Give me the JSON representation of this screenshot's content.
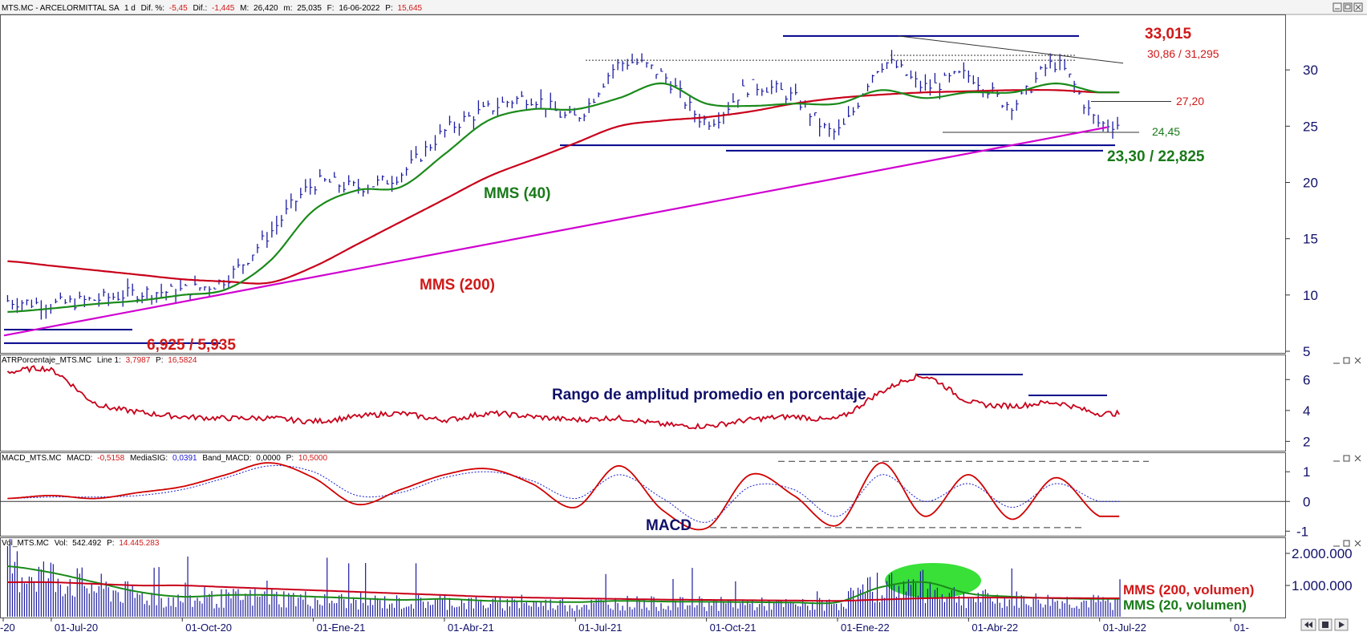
{
  "header": {
    "symbol": "MTS.MC",
    "name": "ARCELORMITTAL SA",
    "period": "1 d",
    "dif_pct_label": "Dif. %:",
    "dif_pct": "-5,45",
    "dif_label": "Dif.:",
    "dif": "-1,445",
    "max_label": "M:",
    "max": "26,420",
    "min_label": "m:",
    "min": "25,035",
    "date_label": "F:",
    "date": "16-06-2022",
    "price_label": "P:",
    "price": "15,645"
  },
  "atr_header": {
    "name": "ATRPorcentaje_MTS.MC",
    "line_label": "Line 1:",
    "line": "3,7987",
    "price_label": "P:",
    "price": "16,5824"
  },
  "macd_header": {
    "name": "MACD_MTS.MC",
    "macd_label": "MACD:",
    "macd": "-0,5158",
    "sig_label": "MediaSIG:",
    "sig": "0,0391",
    "band_label": "Band_MACD:",
    "band": "0,0000",
    "price_label": "P:",
    "price": "10,5000"
  },
  "vol_header": {
    "name": "Vol_MTS.MC",
    "vol_label": "Vol:",
    "vol": "542.492",
    "price_label": "P:",
    "price": "14.445.283"
  },
  "colors": {
    "price_bars": "#1a1aa0",
    "mms40": "#1a8a1a",
    "mms200": "#c8001a",
    "trendline": "#d000d0",
    "level_line": "#00008b",
    "atr_line": "#c8001a",
    "macd_line": "#d00000",
    "signal_line": "#1a1ad0",
    "highlight": "#22dd22",
    "red_text": "#d01818",
    "green_text": "#1a7a1a",
    "navy_text": "#10106a"
  },
  "icons": [
    "window-minimize-icon",
    "window-restore-icon",
    "window-close-icon",
    "scroll-left-icon",
    "save-icon",
    "scroll-right-icon"
  ],
  "chart_data": [
    {
      "id": "price",
      "type": "line",
      "x": [
        "2020-05",
        "2020-06",
        "2020-07",
        "2020-08",
        "2020-09",
        "2020-10",
        "2020-11",
        "2020-12",
        "2021-01",
        "2021-02",
        "2021-03",
        "2021-04",
        "2021-05",
        "2021-06",
        "2021-07",
        "2021-08",
        "2021-09",
        "2021-10",
        "2021-11",
        "2021-12",
        "2022-01",
        "2022-02",
        "2022-03",
        "2022-04",
        "2022-05",
        "2022-06"
      ],
      "series": [
        {
          "name": "",
          "values": [
            9.5,
            9.2,
            9.6,
            10.2,
            10.4,
            11.5,
            15.5,
            19.8,
            19.6,
            20.8,
            24.5,
            26.5,
            27.5,
            25.8,
            30.5,
            29.5,
            25.5,
            28.5,
            27.5,
            24.5,
            30.5,
            28.5,
            29.5,
            27.0,
            30.5,
            25.2
          ]
        },
        {
          "name": "MMS (40)",
          "values": [
            8.5,
            8.8,
            9.2,
            9.5,
            10.0,
            10.5,
            13.0,
            17.5,
            19.3,
            19.6,
            22.5,
            25.5,
            26.5,
            26.5,
            27.5,
            28.8,
            27.0,
            26.8,
            27.0,
            27.0,
            28.2,
            27.5,
            28.0,
            28.0,
            28.8,
            28.0
          ]
        },
        {
          "name": "MMS (200)",
          "values": [
            13.0,
            12.6,
            12.2,
            11.8,
            11.4,
            11.2,
            11.1,
            12.5,
            14.5,
            16.5,
            18.5,
            20.5,
            22.0,
            23.5,
            25.0,
            25.5,
            25.8,
            26.3,
            27.0,
            27.5,
            27.8,
            28.0,
            28.1,
            28.2,
            28.2,
            28.0
          ]
        }
      ],
      "annotations": [
        {
          "label": "33,015",
          "value": 33.015
        },
        {
          "label": "30,86 / 31,295",
          "values": [
            30.86,
            31.295
          ]
        },
        {
          "label": "27,20",
          "value": 27.2
        },
        {
          "label": "24,45",
          "value": 24.45
        },
        {
          "label": "23,30 / 22,825",
          "values": [
            23.3,
            22.825
          ]
        },
        {
          "label": "6,925 / 5,935",
          "values": [
            6.925,
            5.935
          ]
        },
        {
          "label": "MMS (40)"
        },
        {
          "label": "MMS (200)"
        }
      ],
      "yticks": [
        5,
        10,
        15,
        20,
        25,
        30
      ],
      "ylim": [
        5,
        34.5
      ]
    },
    {
      "id": "atr",
      "type": "line",
      "title": "Rango de amplitud promedio en porcentaje",
      "x": [
        "2020-05",
        "2020-06",
        "2020-07",
        "2020-08",
        "2020-09",
        "2020-10",
        "2020-11",
        "2020-12",
        "2021-01",
        "2021-02",
        "2021-03",
        "2021-04",
        "2021-05",
        "2021-06",
        "2021-07",
        "2021-08",
        "2021-09",
        "2021-10",
        "2021-11",
        "2021-12",
        "2022-01",
        "2022-02",
        "2022-03",
        "2022-04",
        "2022-05",
        "2022-06"
      ],
      "values": [
        6.5,
        6.6,
        4.5,
        3.9,
        3.6,
        3.5,
        3.5,
        3.3,
        3.6,
        3.8,
        3.4,
        3.8,
        3.6,
        3.4,
        3.5,
        3.1,
        3.0,
        3.4,
        3.6,
        3.5,
        5.2,
        6.2,
        4.6,
        4.3,
        4.5,
        3.8
      ],
      "yticks": [
        2,
        4,
        6
      ],
      "ylim": [
        1.5,
        7.0
      ]
    },
    {
      "id": "macd",
      "type": "line",
      "title": "MACD",
      "x": [
        "2020-05",
        "2020-06",
        "2020-07",
        "2020-08",
        "2020-09",
        "2020-10",
        "2020-11",
        "2020-12",
        "2021-01",
        "2021-02",
        "2021-03",
        "2021-04",
        "2021-05",
        "2021-06",
        "2021-07",
        "2021-08",
        "2021-09",
        "2021-10",
        "2021-11",
        "2021-12",
        "2022-01",
        "2022-02",
        "2022-03",
        "2022-04",
        "2022-05",
        "2022-06"
      ],
      "series": [
        {
          "name": "MACD",
          "values": [
            0.1,
            0.2,
            0.1,
            0.3,
            0.5,
            0.9,
            1.3,
            0.8,
            -0.1,
            0.4,
            0.9,
            1.1,
            0.6,
            -0.2,
            1.2,
            -0.3,
            -0.9,
            0.9,
            0.2,
            -0.8,
            1.3,
            -0.5,
            0.9,
            -0.6,
            0.8,
            -0.5
          ]
        },
        {
          "name": "MediaSIG",
          "values": [
            0.1,
            0.15,
            0.15,
            0.2,
            0.4,
            0.8,
            1.2,
            1.0,
            0.2,
            0.3,
            0.8,
            1.0,
            0.7,
            0.1,
            0.9,
            0.1,
            -0.7,
            0.5,
            0.4,
            -0.5,
            0.9,
            0.0,
            0.6,
            -0.2,
            0.6,
            0.0
          ]
        }
      ],
      "yticks": [
        -1,
        0,
        1
      ],
      "ylim": [
        -1.1,
        1.6
      ]
    },
    {
      "id": "volume",
      "type": "bar",
      "x": [
        "2020-05",
        "2020-06",
        "2020-07",
        "2020-08",
        "2020-09",
        "2020-10",
        "2020-11",
        "2020-12",
        "2021-01",
        "2021-02",
        "2021-03",
        "2021-04",
        "2021-05",
        "2021-06",
        "2021-07",
        "2021-08",
        "2021-09",
        "2021-10",
        "2021-11",
        "2021-12",
        "2022-01",
        "2022-02",
        "2022-03",
        "2022-04",
        "2022-05",
        "2022-06"
      ],
      "values": [
        1800000,
        1500000,
        1100000,
        800000,
        600000,
        700000,
        750000,
        650000,
        600000,
        550000,
        600000,
        500000,
        500000,
        450000,
        550000,
        500000,
        500000,
        500000,
        450000,
        500000,
        1200000,
        1100000,
        700000,
        650000,
        600000,
        550000
      ],
      "series": [
        {
          "name": "MMS (200, volumen)",
          "values": [
            1100000,
            1100000,
            1050000,
            1000000,
            1000000,
            950000,
            900000,
            850000,
            800000,
            750000,
            700000,
            650000,
            620000,
            600000,
            580000,
            560000,
            550000,
            540000,
            530000,
            520000,
            560000,
            600000,
            620000,
            620000,
            610000,
            600000
          ]
        },
        {
          "name": "MMS (20, volumen)",
          "values": [
            1600000,
            1400000,
            1100000,
            800000,
            650000,
            700000,
            700000,
            650000,
            600000,
            550000,
            580000,
            520000,
            500000,
            480000,
            520000,
            500000,
            490000,
            480000,
            470000,
            480000,
            950000,
            1100000,
            750000,
            650000,
            600000,
            580000
          ]
        }
      ],
      "yticks": [
        "1.000.000",
        "2.000.000"
      ],
      "ylim": [
        0,
        2500000
      ]
    }
  ],
  "x_axis": {
    "ticks": [
      "-20",
      "01-Jul-20",
      "01-Oct-20",
      "01-Ene-21",
      "01-Abr-21",
      "01-Jul-21",
      "01-Oct-21",
      "01-Ene-22",
      "01-Abr-22",
      "01-Jul-22",
      "01-"
    ]
  }
}
